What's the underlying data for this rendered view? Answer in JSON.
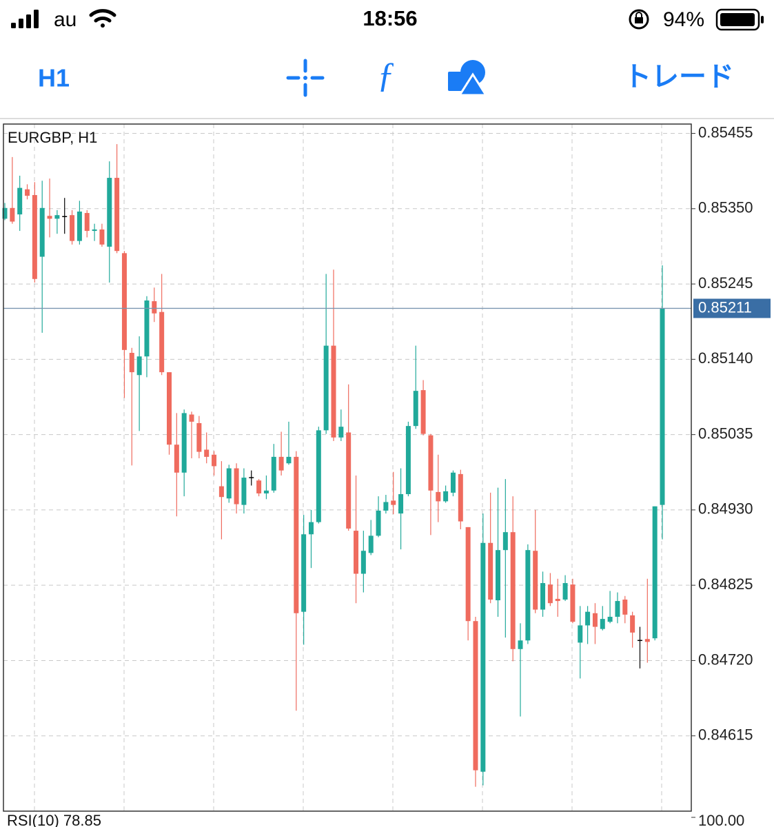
{
  "status_bar": {
    "carrier": "au",
    "time": "18:56",
    "battery": "94%"
  },
  "toolbar": {
    "timeframe": "H1",
    "trade": "トレード"
  },
  "chart_data": {
    "type": "candlestick",
    "title": "EURGBP, H1",
    "open": [
      0.85336,
      0.85351,
      0.85342,
      0.85377,
      0.85369,
      0.85283,
      0.8534,
      0.85336,
      0.85339,
      0.85341,
      0.85305,
      0.85344,
      0.85319,
      0.85321,
      0.85297,
      0.85393,
      0.85288,
      0.85149,
      0.85118,
      0.85144,
      0.85221,
      0.85206,
      0.85122,
      0.85021,
      0.84982,
      0.85063,
      0.85051,
      0.85014,
      0.85007,
      0.84963,
      0.84946,
      0.84988,
      0.84937,
      0.84975,
      0.84971,
      0.84953,
      0.84957,
      0.85004,
      0.84995,
      0.85004,
      0.84788,
      0.84896,
      0.84913,
      0.85041,
      0.85159,
      0.85031,
      0.85038,
      0.84901,
      0.84841,
      0.8487,
      0.84894,
      0.84929,
      0.84943,
      0.84925,
      0.84952,
      0.85047,
      0.85097,
      0.85034,
      0.84955,
      0.84942,
      0.84954,
      0.8498,
      0.84906,
      0.84775,
      0.84565,
      0.84884,
      0.84804,
      0.84874,
      0.84899,
      0.84736,
      0.84748,
      0.84873,
      0.84791,
      0.84826,
      0.84806,
      0.84805,
      0.84826,
      0.84745,
      0.84769,
      0.84786,
      0.84764,
      0.84774,
      0.84781,
      0.84805,
      0.84783,
      0.84748,
      0.8475,
      0.84751,
      0.84937
    ],
    "high": [
      0.85358,
      0.85422,
      0.85396,
      0.85384,
      0.85387,
      0.85389,
      0.85392,
      0.85348,
      0.85365,
      0.85348,
      0.85361,
      0.85348,
      0.85329,
      0.85329,
      0.85416,
      0.8544,
      0.85291,
      0.85156,
      0.85172,
      0.85228,
      0.8524,
      0.85259,
      0.85122,
      0.85065,
      0.8507,
      0.85067,
      0.85061,
      0.85038,
      0.85012,
      0.84998,
      0.84993,
      0.84995,
      0.84988,
      0.84985,
      0.84973,
      0.84978,
      0.85022,
      0.85039,
      0.85053,
      0.85012,
      0.84923,
      0.8493,
      0.85046,
      0.85259,
      0.85265,
      0.8507,
      0.85105,
      0.84978,
      0.84901,
      0.84916,
      0.84949,
      0.84951,
      0.84983,
      0.84988,
      0.85053,
      0.85159,
      0.85111,
      0.85036,
      0.85007,
      0.84964,
      0.84985,
      0.84986,
      0.84906,
      0.84781,
      0.84925,
      0.84954,
      0.84961,
      0.84973,
      0.84949,
      0.84772,
      0.84882,
      0.8493,
      0.84844,
      0.84842,
      0.84834,
      0.84839,
      0.84834,
      0.84796,
      0.84796,
      0.848,
      0.84796,
      0.84817,
      0.84815,
      0.8481,
      0.84788,
      0.84767,
      0.84834,
      0.84935,
      0.85271
    ],
    "low": [
      0.85334,
      0.85329,
      0.85319,
      0.85363,
      0.85247,
      0.85177,
      0.8531,
      0.85315,
      0.85315,
      0.853,
      0.853,
      0.8531,
      0.85305,
      0.85297,
      0.85247,
      0.85288,
      0.85086,
      0.84992,
      0.8504,
      0.85115,
      0.85192,
      0.85118,
      0.85007,
      0.84921,
      0.84949,
      0.85002,
      0.85002,
      0.84995,
      0.84978,
      0.84889,
      0.8494,
      0.84925,
      0.84925,
      0.84964,
      0.84949,
      0.84945,
      0.84954,
      0.84978,
      0.84993,
      0.8465,
      0.84742,
      0.84849,
      0.84911,
      0.85036,
      0.85026,
      0.85026,
      0.84901,
      0.848,
      0.84815,
      0.84867,
      0.84892,
      0.84925,
      0.84924,
      0.84875,
      0.84949,
      0.85043,
      0.85034,
      0.84895,
      0.84913,
      0.8494,
      0.84949,
      0.84903,
      0.84748,
      0.84544,
      0.84546,
      0.848,
      0.84781,
      0.84752,
      0.84719,
      0.84642,
      0.84743,
      0.84786,
      0.84781,
      0.84796,
      0.84781,
      0.84803,
      0.84772,
      0.84695,
      0.84743,
      0.84743,
      0.84762,
      0.84772,
      0.84772,
      0.84772,
      0.84738,
      0.84709,
      0.84717,
      0.84748,
      0.84889
    ],
    "close": [
      0.85351,
      0.85332,
      0.85379,
      0.85368,
      0.85252,
      0.85351,
      0.85336,
      0.85341,
      0.85339,
      0.85305,
      0.85346,
      0.85319,
      0.85321,
      0.853,
      0.85393,
      0.85291,
      0.85153,
      0.85122,
      0.85144,
      0.85222,
      0.85204,
      0.85122,
      0.85021,
      0.84982,
      0.85065,
      0.85053,
      0.85011,
      0.85004,
      0.84991,
      0.84948,
      0.84988,
      0.84938,
      0.84975,
      0.84975,
      0.84953,
      0.84957,
      0.85004,
      0.84985,
      0.85004,
      0.84786,
      0.84896,
      0.84913,
      0.85041,
      0.85159,
      0.85031,
      0.85046,
      0.84904,
      0.84841,
      0.84873,
      0.84894,
      0.84929,
      0.84941,
      0.84937,
      0.84952,
      0.85047,
      0.85096,
      0.85036,
      0.84957,
      0.84942,
      0.84956,
      0.84982,
      0.84914,
      0.84775,
      0.84567,
      0.84884,
      0.84805,
      0.84874,
      0.84899,
      0.84736,
      0.84748,
      0.84874,
      0.84791,
      0.84828,
      0.848,
      0.84803,
      0.84828,
      0.84774,
      0.84769,
      0.84788,
      0.84767,
      0.84778,
      0.84781,
      0.84803,
      0.84784,
      0.84759,
      0.84748,
      0.84746,
      0.84935,
      0.85211
    ],
    "up_color": "#20a99a",
    "down_color": "#ef6b5e",
    "doji_color": "#000000",
    "ylim": [
      0.8451,
      0.85468
    ],
    "yticks": [
      0.85455,
      {
        "value": 0.8535,
        "label": "0.85350"
      },
      0.85245,
      {
        "value": 0.8514,
        "label": "0.85140"
      },
      0.85035,
      {
        "value": 0.8493,
        "label": "0.84930"
      },
      0.84825,
      {
        "value": 0.8472,
        "label": "0.84720"
      },
      0.84615
    ],
    "grid": true,
    "last_price": 0.85211,
    "indicator": {
      "label": "RSI(10) 78.85",
      "yticks": [
        {
          "value": 100,
          "label": "100.00"
        }
      ]
    }
  }
}
